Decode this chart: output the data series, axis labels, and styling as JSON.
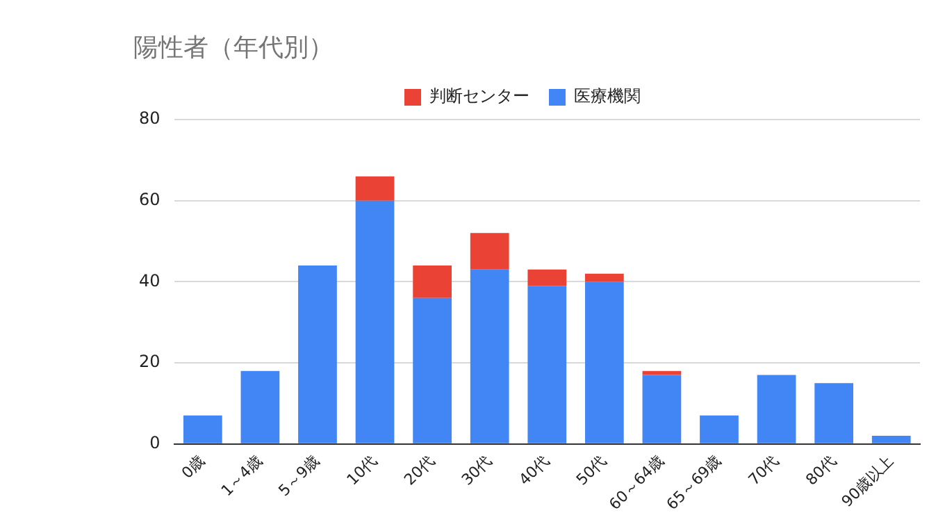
{
  "chart_data": {
    "type": "bar",
    "title": "陽性者（年代別）",
    "stacked": true,
    "categories": [
      "0歳",
      "1～4歳",
      "5～9歳",
      "10代",
      "20代",
      "30代",
      "40代",
      "50代",
      "60～64歳",
      "65～69歳",
      "70代",
      "80代",
      "90歳以上"
    ],
    "series": [
      {
        "name": "医療機関",
        "color": "#4285f4",
        "values": [
          7,
          18,
          44,
          60,
          36,
          43,
          39,
          40,
          17,
          7,
          17,
          15,
          2
        ]
      },
      {
        "name": "判断センター",
        "color": "#ea4335",
        "values": [
          0,
          0,
          0,
          6,
          8,
          9,
          4,
          2,
          1,
          0,
          0,
          0,
          0
        ]
      }
    ],
    "ylim": [
      0,
      80
    ],
    "yticks": [
      0,
      20,
      40,
      60,
      80
    ],
    "grid": "y",
    "legend": "top"
  }
}
